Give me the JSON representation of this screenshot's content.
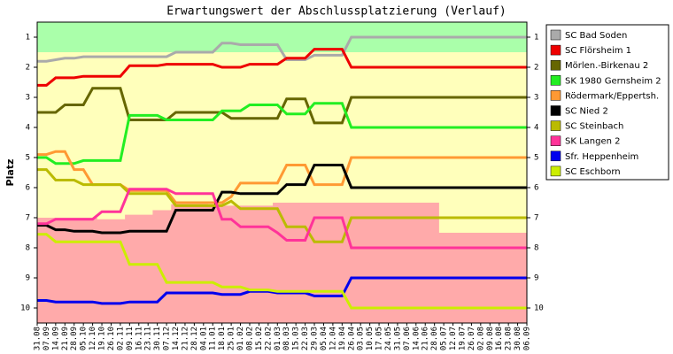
{
  "chart_data": {
    "type": "line",
    "title": "Erwartungswert der Abschlussplatzierung (Verlauf)",
    "y_label": "Platz",
    "categories": [
      "31.08",
      "07.09",
      "14.09",
      "21.09",
      "28.09",
      "05.10",
      "12.10",
      "19.10",
      "26.10",
      "02.11",
      "09.11",
      "16.11",
      "23.11",
      "30.11",
      "07.12",
      "14.12",
      "21.12",
      "28.12",
      "04.01",
      "11.01",
      "18.01",
      "25.01",
      "01.02",
      "08.02",
      "15.02",
      "22.02",
      "01.03",
      "08.03",
      "15.03",
      "22.03",
      "29.03",
      "05.04",
      "12.04",
      "19.04",
      "26.04",
      "03.05",
      "10.05",
      "17.05",
      "24.05",
      "31.05",
      "07.06",
      "14.06",
      "21.06",
      "28.06",
      "05.07",
      "12.07",
      "19.07",
      "26.07",
      "02.08",
      "09.08",
      "16.08",
      "23.08",
      "30.08",
      "06.09"
    ],
    "ylim": [
      10.5,
      0.5
    ],
    "yticks": [
      1,
      2,
      3,
      4,
      5,
      6,
      7,
      8,
      9,
      10
    ],
    "zones": {
      "green_to": 1.5,
      "green_color": "#aaffaa",
      "middle_color": "#ffffbb",
      "red_color": "#ffaaaa",
      "red_from": [
        7.0,
        7.0,
        7.0,
        7.0,
        7.0,
        7.0,
        7.0,
        7.05,
        7.05,
        7.05,
        6.9,
        6.9,
        6.9,
        6.75,
        6.75,
        6.55,
        6.55,
        6.55,
        6.55,
        6.6,
        6.6,
        6.6,
        6.6,
        6.6,
        6.6,
        6.6,
        6.5,
        6.5,
        6.5,
        6.5,
        6.5,
        6.5,
        6.5,
        6.5,
        6.5,
        6.5,
        6.5,
        6.5,
        6.5,
        6.5,
        6.5,
        6.5,
        6.5,
        6.5,
        7.5,
        7.5,
        7.5,
        7.5,
        7.5,
        7.5,
        7.5,
        7.5,
        7.5,
        7.5
      ]
    },
    "series": [
      {
        "name": "SC Bad Soden",
        "color": "#aaaaaa",
        "values": [
          1.8,
          1.8,
          1.75,
          1.7,
          1.7,
          1.65,
          1.65,
          1.65,
          1.65,
          1.65,
          1.65,
          1.65,
          1.65,
          1.65,
          1.65,
          1.5,
          1.5,
          1.5,
          1.5,
          1.5,
          1.2,
          1.2,
          1.25,
          1.25,
          1.25,
          1.25,
          1.25,
          1.75,
          1.75,
          1.75,
          1.6,
          1.6,
          1.6,
          1.6,
          1.0,
          1.0,
          1.0,
          1.0,
          1.0,
          1.0,
          1.0,
          1.0,
          1.0,
          1.0,
          1.0,
          1.0,
          1.0,
          1.0,
          1.0,
          1.0,
          1.0,
          1.0,
          1.0,
          1.0
        ]
      },
      {
        "name": "SC Flörsheim 1",
        "color": "#ee0000",
        "values": [
          2.6,
          2.6,
          2.35,
          2.35,
          2.35,
          2.3,
          2.3,
          2.3,
          2.3,
          2.3,
          1.95,
          1.95,
          1.95,
          1.95,
          1.9,
          1.9,
          1.9,
          1.9,
          1.9,
          1.9,
          2.0,
          2.0,
          2.0,
          1.9,
          1.9,
          1.9,
          1.9,
          1.7,
          1.7,
          1.7,
          1.4,
          1.4,
          1.4,
          1.4,
          2.0,
          2.0,
          2.0,
          2.0,
          2.0,
          2.0,
          2.0,
          2.0,
          2.0,
          2.0,
          2.0,
          2.0,
          2.0,
          2.0,
          2.0,
          2.0,
          2.0,
          2.0,
          2.0,
          2.0
        ]
      },
      {
        "name": "Mörlen.-Birkenau 2",
        "color": "#666600",
        "values": [
          3.5,
          3.5,
          3.5,
          3.25,
          3.25,
          3.25,
          2.7,
          2.7,
          2.7,
          2.7,
          3.75,
          3.75,
          3.75,
          3.75,
          3.75,
          3.5,
          3.5,
          3.5,
          3.5,
          3.5,
          3.5,
          3.7,
          3.7,
          3.7,
          3.7,
          3.7,
          3.7,
          3.05,
          3.05,
          3.05,
          3.85,
          3.85,
          3.85,
          3.85,
          3.0,
          3.0,
          3.0,
          3.0,
          3.0,
          3.0,
          3.0,
          3.0,
          3.0,
          3.0,
          3.0,
          3.0,
          3.0,
          3.0,
          3.0,
          3.0,
          3.0,
          3.0,
          3.0,
          3.0
        ]
      },
      {
        "name": "SK 1980 Gernsheim 2",
        "color": "#22ee22",
        "values": [
          5.0,
          5.0,
          5.2,
          5.2,
          5.2,
          5.1,
          5.1,
          5.1,
          5.1,
          5.1,
          3.6,
          3.6,
          3.6,
          3.6,
          3.75,
          3.75,
          3.75,
          3.75,
          3.75,
          3.75,
          3.45,
          3.45,
          3.45,
          3.25,
          3.25,
          3.25,
          3.25,
          3.55,
          3.55,
          3.55,
          3.2,
          3.2,
          3.2,
          3.2,
          4.0,
          4.0,
          4.0,
          4.0,
          4.0,
          4.0,
          4.0,
          4.0,
          4.0,
          4.0,
          4.0,
          4.0,
          4.0,
          4.0,
          4.0,
          4.0,
          4.0,
          4.0,
          4.0,
          4.0
        ]
      },
      {
        "name": "Rödermark/Eppertsh.",
        "color": "#ff9933",
        "values": [
          4.9,
          4.9,
          4.8,
          4.8,
          5.4,
          5.4,
          5.9,
          5.9,
          5.9,
          5.9,
          6.1,
          6.1,
          6.1,
          6.1,
          6.1,
          6.5,
          6.5,
          6.5,
          6.5,
          6.5,
          6.5,
          6.3,
          5.85,
          5.85,
          5.85,
          5.85,
          5.85,
          5.25,
          5.25,
          5.25,
          5.9,
          5.9,
          5.9,
          5.9,
          5.0,
          5.0,
          5.0,
          5.0,
          5.0,
          5.0,
          5.0,
          5.0,
          5.0,
          5.0,
          5.0,
          5.0,
          5.0,
          5.0,
          5.0,
          5.0,
          5.0,
          5.0,
          5.0,
          5.0
        ]
      },
      {
        "name": "SC Nied 2",
        "color": "#000000",
        "values": [
          7.25,
          7.25,
          7.4,
          7.4,
          7.45,
          7.45,
          7.45,
          7.5,
          7.5,
          7.5,
          7.45,
          7.45,
          7.45,
          7.45,
          7.45,
          6.75,
          6.75,
          6.75,
          6.75,
          6.75,
          6.15,
          6.15,
          6.2,
          6.2,
          6.2,
          6.2,
          6.2,
          5.9,
          5.9,
          5.9,
          5.25,
          5.25,
          5.25,
          5.25,
          6.0,
          6.0,
          6.0,
          6.0,
          6.0,
          6.0,
          6.0,
          6.0,
          6.0,
          6.0,
          6.0,
          6.0,
          6.0,
          6.0,
          6.0,
          6.0,
          6.0,
          6.0,
          6.0,
          6.0
        ]
      },
      {
        "name": "SC Steinbach",
        "color": "#bbbb00",
        "values": [
          5.4,
          5.4,
          5.75,
          5.75,
          5.75,
          5.9,
          5.9,
          5.9,
          5.9,
          5.9,
          6.2,
          6.2,
          6.2,
          6.2,
          6.2,
          6.6,
          6.6,
          6.6,
          6.6,
          6.6,
          6.6,
          6.45,
          6.7,
          6.7,
          6.7,
          6.7,
          6.7,
          7.3,
          7.3,
          7.3,
          7.8,
          7.8,
          7.8,
          7.8,
          7.0,
          7.0,
          7.0,
          7.0,
          7.0,
          7.0,
          7.0,
          7.0,
          7.0,
          7.0,
          7.0,
          7.0,
          7.0,
          7.0,
          7.0,
          7.0,
          7.0,
          7.0,
          7.0,
          7.0
        ]
      },
      {
        "name": "SK Langen 2",
        "color": "#ff3399",
        "values": [
          7.2,
          7.2,
          7.05,
          7.05,
          7.05,
          7.05,
          7.05,
          6.8,
          6.8,
          6.8,
          6.05,
          6.05,
          6.05,
          6.05,
          6.05,
          6.2,
          6.2,
          6.2,
          6.2,
          6.2,
          7.05,
          7.05,
          7.3,
          7.3,
          7.3,
          7.3,
          7.5,
          7.75,
          7.75,
          7.75,
          7.0,
          7.0,
          7.0,
          7.0,
          8.0,
          8.0,
          8.0,
          8.0,
          8.0,
          8.0,
          8.0,
          8.0,
          8.0,
          8.0,
          8.0,
          8.0,
          8.0,
          8.0,
          8.0,
          8.0,
          8.0,
          8.0,
          8.0,
          8.0
        ]
      },
      {
        "name": "Sfr. Heppenheim",
        "color": "#0000ee",
        "values": [
          9.75,
          9.75,
          9.8,
          9.8,
          9.8,
          9.8,
          9.8,
          9.85,
          9.85,
          9.85,
          9.8,
          9.8,
          9.8,
          9.8,
          9.5,
          9.5,
          9.5,
          9.5,
          9.5,
          9.5,
          9.55,
          9.55,
          9.55,
          9.45,
          9.45,
          9.45,
          9.5,
          9.5,
          9.5,
          9.5,
          9.6,
          9.6,
          9.6,
          9.6,
          9.0,
          9.0,
          9.0,
          9.0,
          9.0,
          9.0,
          9.0,
          9.0,
          9.0,
          9.0,
          9.0,
          9.0,
          9.0,
          9.0,
          9.0,
          9.0,
          9.0,
          9.0,
          9.0,
          9.0
        ]
      },
      {
        "name": "SC Eschborn",
        "color": "#ccee00",
        "values": [
          7.55,
          7.55,
          7.8,
          7.8,
          7.8,
          7.8,
          7.8,
          7.8,
          7.8,
          7.8,
          8.55,
          8.55,
          8.55,
          8.55,
          9.15,
          9.15,
          9.15,
          9.15,
          9.15,
          9.15,
          9.3,
          9.3,
          9.3,
          9.4,
          9.4,
          9.4,
          9.45,
          9.45,
          9.45,
          9.45,
          9.45,
          9.45,
          9.45,
          9.45,
          10.0,
          10.0,
          10.0,
          10.0,
          10.0,
          10.0,
          10.0,
          10.0,
          10.0,
          10.0,
          10.0,
          10.0,
          10.0,
          10.0,
          10.0,
          10.0,
          10.0,
          10.0,
          10.0,
          10.0
        ]
      }
    ]
  }
}
